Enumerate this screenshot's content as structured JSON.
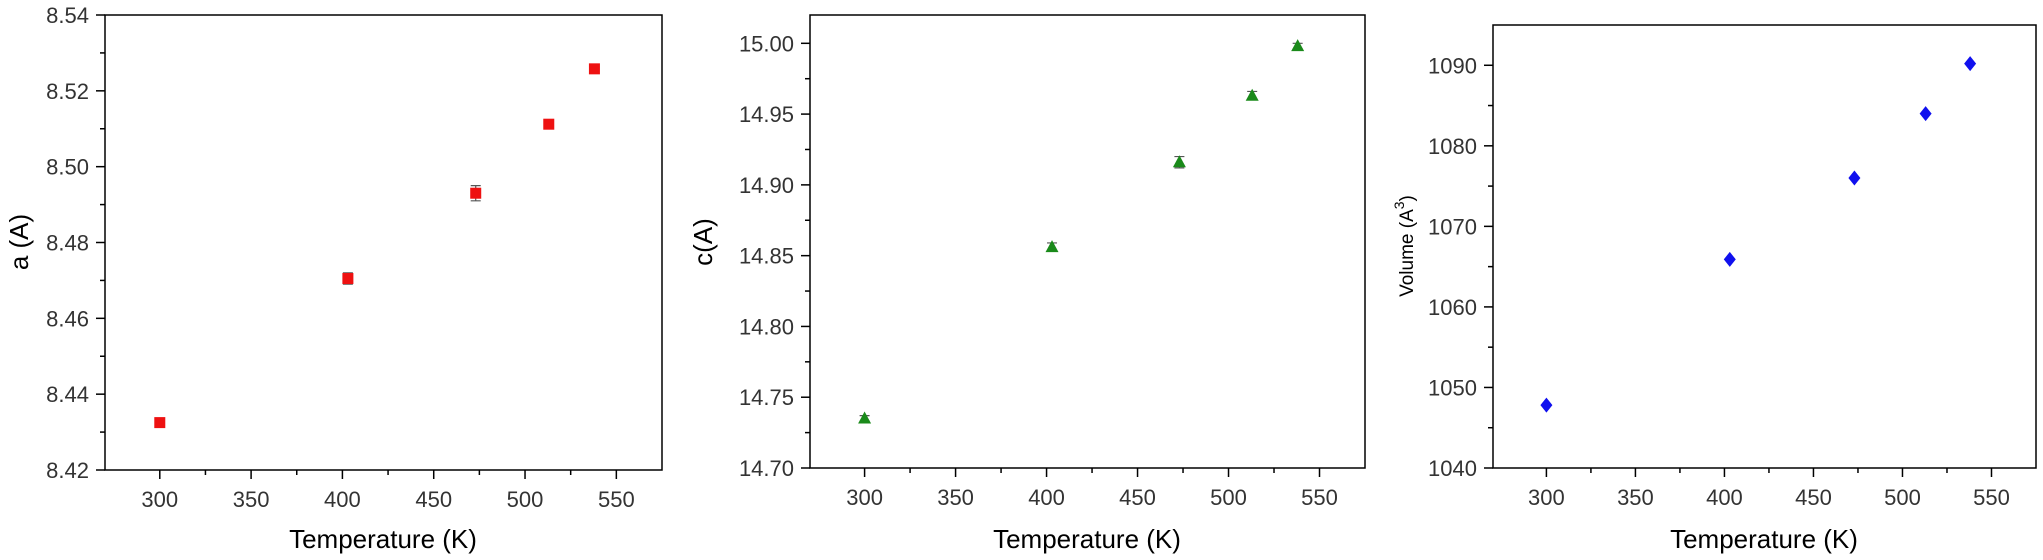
{
  "chart_data": [
    {
      "type": "scatter",
      "xlabel": "Temperature (K)",
      "ylabel": "a (A)",
      "xlim": [
        270,
        575
      ],
      "ylim": [
        8.42,
        8.54
      ],
      "xticks": [
        "300",
        "350",
        "400",
        "450",
        "500",
        "550"
      ],
      "yticks": [
        "8.42",
        "8.44",
        "8.46",
        "8.48",
        "8.50",
        "8.52",
        "8.54"
      ],
      "marker": "square",
      "color": "#ee1111",
      "series": [
        {
          "x": [
            300,
            403,
            473,
            513,
            538
          ],
          "y": [
            8.4325,
            8.4705,
            8.493,
            8.5112,
            8.5258
          ],
          "err": [
            0.0005,
            0.0015,
            0.002,
            0.0006,
            0.0006
          ]
        }
      ]
    },
    {
      "type": "scatter",
      "xlabel": "Temperature (K)",
      "ylabel": "c(A)",
      "xlim": [
        270,
        575
      ],
      "ylim": [
        14.7,
        15.02
      ],
      "xticks": [
        "300",
        "350",
        "400",
        "450",
        "500",
        "550"
      ],
      "yticks": [
        "14.70",
        "14.75",
        "14.80",
        "14.85",
        "14.90",
        "14.95",
        "15.00"
      ],
      "marker": "triangle",
      "color": "#1a8a1a",
      "series": [
        {
          "x": [
            300,
            403,
            473,
            513,
            538
          ],
          "y": [
            14.735,
            14.856,
            14.916,
            14.963,
            14.998
          ],
          "err": [
            0.002,
            0.003,
            0.004,
            0.003,
            0.002
          ]
        }
      ]
    },
    {
      "type": "scatter",
      "xlabel": "Temperature (K)",
      "ylabel": "Volume (A",
      "ylabel_superscript": "3",
      "ylabel_suffix": ")",
      "xlim": [
        270,
        575
      ],
      "ylim": [
        1040,
        1095
      ],
      "xticks": [
        "300",
        "350",
        "400",
        "450",
        "500",
        "550"
      ],
      "yticks": [
        "1040",
        "1050",
        "1060",
        "1070",
        "1080",
        "1090"
      ],
      "marker": "diamond",
      "color": "#1010ee",
      "series": [
        {
          "x": [
            300,
            403,
            473,
            513,
            538
          ],
          "y": [
            1047.8,
            1065.9,
            1076.0,
            1084.0,
            1090.2
          ],
          "err": [
            0,
            0,
            0,
            0,
            0
          ]
        }
      ]
    }
  ]
}
